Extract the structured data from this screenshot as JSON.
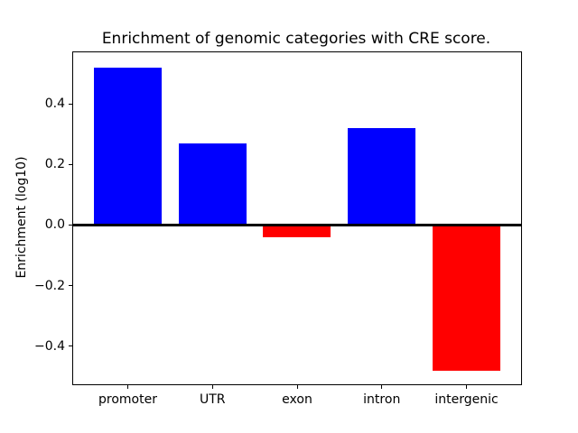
{
  "figure": {
    "background_color": "#ffffff",
    "text_color": "#000000"
  },
  "chart_data": {
    "type": "bar",
    "title": "Enrichment of genomic categories with CRE score.",
    "xlabel": "",
    "ylabel": "Enrichment (log10)",
    "categories": [
      "promoter",
      "UTR",
      "exon",
      "intron",
      "intergenic"
    ],
    "values": [
      0.52,
      0.27,
      -0.04,
      0.32,
      -0.48
    ],
    "bar_colors": [
      "#0000ff",
      "#0000ff",
      "#ff0000",
      "#0000ff",
      "#ff0000"
    ],
    "positive_color": "#0000ff",
    "negative_color": "#ff0000",
    "yticks": [
      0.4,
      0.2,
      0.0,
      -0.2,
      -0.4
    ],
    "ylim": [
      -0.526,
      0.57
    ],
    "xlim": [
      -0.645,
      4.645
    ],
    "bar_width_fraction": 0.8,
    "zero_line": true,
    "grid": false,
    "legend": null,
    "spine_color": "#000000"
  }
}
